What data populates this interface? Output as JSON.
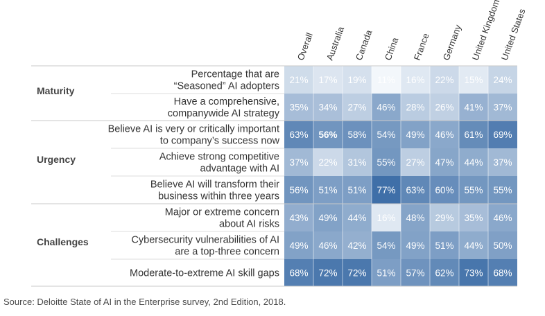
{
  "chart_data": {
    "type": "heatmap",
    "columns": [
      "Overall",
      "Australia",
      "Canada",
      "China",
      "France",
      "Germany",
      "United Kingdom",
      "United States"
    ],
    "groups": [
      {
        "name": "Maturity",
        "rows": [
          0,
          1
        ]
      },
      {
        "name": "Urgency",
        "rows": [
          2,
          3,
          4
        ]
      },
      {
        "name": "Challenges",
        "rows": [
          5,
          6,
          7
        ]
      }
    ],
    "rows": [
      {
        "label": [
          "Percentage that are",
          "“Seasoned” AI adopters"
        ],
        "values": [
          21,
          17,
          19,
          11,
          16,
          22,
          15,
          24
        ]
      },
      {
        "label": [
          "Have a comprehensive,",
          "companywide AI strategy"
        ],
        "values": [
          35,
          34,
          27,
          46,
          28,
          26,
          41,
          37
        ]
      },
      {
        "label": [
          "Believe AI is very or critically important",
          "to company’s success now"
        ],
        "values": [
          63,
          56,
          58,
          54,
          49,
          46,
          61,
          69
        ]
      },
      {
        "label": [
          "Achieve strong competitive",
          "advantage with AI"
        ],
        "values": [
          37,
          22,
          31,
          55,
          27,
          47,
          44,
          37
        ]
      },
      {
        "label": [
          "Believe AI will transform their",
          "business within three years"
        ],
        "values": [
          56,
          51,
          51,
          77,
          63,
          60,
          55,
          55
        ]
      },
      {
        "label": [
          "Major or extreme concern",
          "about AI risks"
        ],
        "values": [
          43,
          49,
          44,
          16,
          48,
          29,
          35,
          46
        ]
      },
      {
        "label": [
          "Cybersecurity vulnerabilities of AI",
          "are a top-three concern"
        ],
        "values": [
          49,
          46,
          42,
          54,
          49,
          51,
          44,
          50
        ]
      },
      {
        "label": [
          "Moderate-to-extreme AI skill gaps"
        ],
        "values": [
          68,
          72,
          72,
          51,
          57,
          62,
          73,
          68
        ]
      }
    ],
    "value_suffix": "%",
    "bold_cells": [
      [
        2,
        1
      ]
    ],
    "highlight_text_cells": [
      [
        0,
        0
      ],
      [
        0,
        1
      ],
      [
        0,
        2
      ],
      [
        0,
        3
      ],
      [
        0,
        4
      ],
      [
        0,
        5
      ],
      [
        0,
        6
      ],
      [
        0,
        7
      ],
      [
        2,
        1
      ],
      [
        5,
        5
      ]
    ],
    "color_scale": {
      "min": 11,
      "max": 77,
      "low": "#f3f7fb",
      "high": "#3f6fa8"
    },
    "source": "Source: Deloitte State of AI in the Enterprise survey, 2nd Edition, 2018."
  }
}
